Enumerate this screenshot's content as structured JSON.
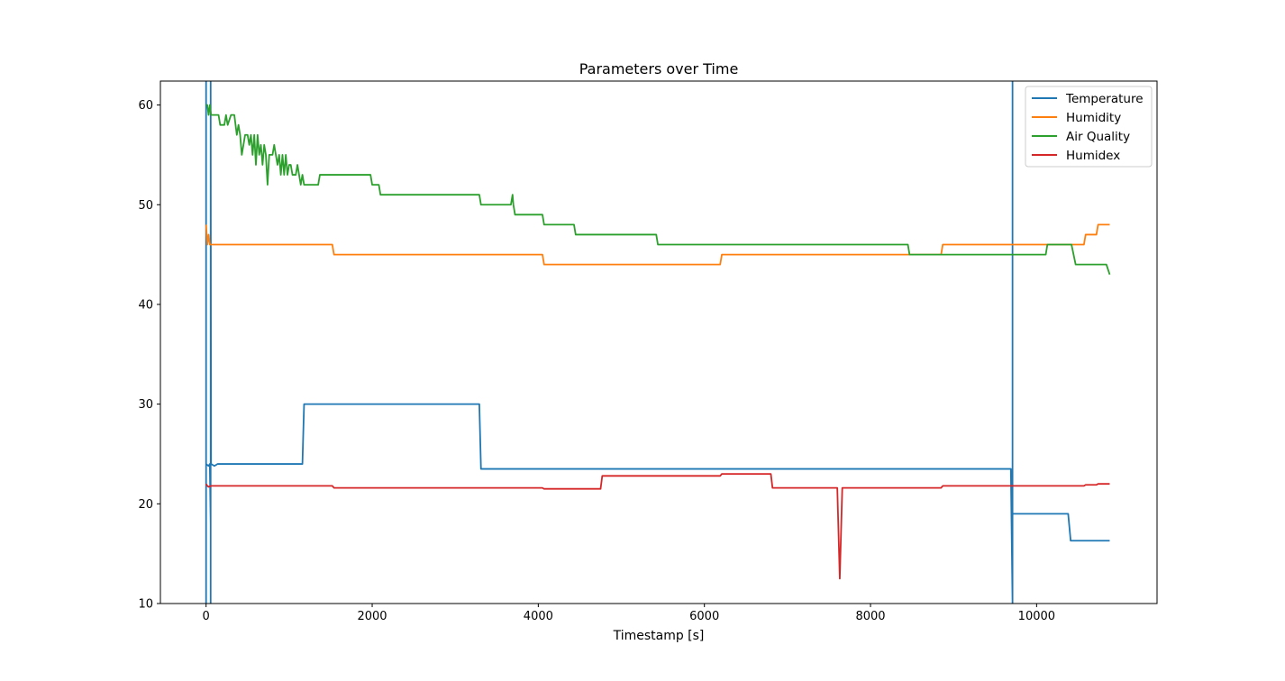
{
  "chart_data": {
    "type": "line",
    "title": "Parameters over Time",
    "xlabel": "Timestamp [s]",
    "ylabel": "",
    "xlim": [
      -550,
      11450
    ],
    "ylim": [
      10,
      62.4
    ],
    "xticks": [
      0,
      2000,
      4000,
      6000,
      8000,
      10000
    ],
    "yticks": [
      10,
      20,
      30,
      40,
      50,
      60
    ],
    "grid": false,
    "legend_position": "top-right",
    "series": [
      {
        "name": "Temperature",
        "color": "#1f77b4",
        "points": [
          [
            0,
            10
          ],
          [
            0,
            62.4
          ],
          [
            0,
            24
          ],
          [
            15,
            23.9
          ],
          [
            30,
            23.8
          ],
          [
            45,
            24
          ],
          [
            55,
            18
          ],
          [
            55,
            10
          ],
          [
            55,
            62.4
          ],
          [
            60,
            24
          ],
          [
            80,
            23.9
          ],
          [
            100,
            23.8
          ],
          [
            140,
            24
          ],
          [
            1160,
            24
          ],
          [
            1180,
            30
          ],
          [
            3290,
            30
          ],
          [
            3310,
            23.5
          ],
          [
            9690,
            23.5
          ],
          [
            9710,
            10
          ],
          [
            9710,
            62.4
          ],
          [
            9710,
            19
          ],
          [
            10380,
            19
          ],
          [
            10410,
            16.3
          ],
          [
            10880,
            16.3
          ]
        ]
      },
      {
        "name": "Humidity",
        "color": "#ff7f0e",
        "points": [
          [
            0,
            48
          ],
          [
            15,
            46
          ],
          [
            30,
            47
          ],
          [
            45,
            46
          ],
          [
            60,
            46
          ],
          [
            1520,
            46
          ],
          [
            1540,
            45
          ],
          [
            4050,
            45
          ],
          [
            4070,
            44
          ],
          [
            6190,
            44
          ],
          [
            6210,
            45
          ],
          [
            8850,
            45
          ],
          [
            8870,
            46
          ],
          [
            10570,
            46
          ],
          [
            10590,
            47
          ],
          [
            10720,
            47
          ],
          [
            10740,
            48
          ],
          [
            10880,
            48
          ]
        ]
      },
      {
        "name": "Air Quality",
        "color": "#2ca02c",
        "points": [
          [
            0,
            60
          ],
          [
            15,
            60
          ],
          [
            30,
            59
          ],
          [
            45,
            60
          ],
          [
            60,
            59
          ],
          [
            150,
            59
          ],
          [
            170,
            58
          ],
          [
            220,
            58
          ],
          [
            240,
            59
          ],
          [
            260,
            58
          ],
          [
            300,
            59
          ],
          [
            340,
            59
          ],
          [
            370,
            57
          ],
          [
            390,
            58
          ],
          [
            410,
            57
          ],
          [
            430,
            55
          ],
          [
            450,
            56
          ],
          [
            470,
            57
          ],
          [
            500,
            57
          ],
          [
            520,
            56
          ],
          [
            540,
            57
          ],
          [
            560,
            55
          ],
          [
            580,
            57
          ],
          [
            600,
            54
          ],
          [
            620,
            57
          ],
          [
            640,
            55
          ],
          [
            660,
            56
          ],
          [
            680,
            54
          ],
          [
            700,
            56
          ],
          [
            720,
            55
          ],
          [
            740,
            52
          ],
          [
            760,
            55
          ],
          [
            800,
            55
          ],
          [
            820,
            56
          ],
          [
            840,
            55
          ],
          [
            860,
            54
          ],
          [
            880,
            55
          ],
          [
            900,
            53
          ],
          [
            920,
            55
          ],
          [
            940,
            53
          ],
          [
            960,
            55
          ],
          [
            980,
            53
          ],
          [
            1000,
            54
          ],
          [
            1020,
            54
          ],
          [
            1040,
            53
          ],
          [
            1080,
            53
          ],
          [
            1100,
            54
          ],
          [
            1120,
            53
          ],
          [
            1140,
            52
          ],
          [
            1160,
            53
          ],
          [
            1180,
            52
          ],
          [
            1350,
            52
          ],
          [
            1370,
            53
          ],
          [
            1980,
            53
          ],
          [
            2000,
            52
          ],
          [
            2080,
            52
          ],
          [
            2100,
            51
          ],
          [
            3290,
            51
          ],
          [
            3310,
            50
          ],
          [
            3670,
            50
          ],
          [
            3690,
            51
          ],
          [
            3700,
            50
          ],
          [
            3720,
            49
          ],
          [
            4050,
            49
          ],
          [
            4070,
            48
          ],
          [
            4430,
            48
          ],
          [
            4450,
            47
          ],
          [
            5420,
            47
          ],
          [
            5440,
            46
          ],
          [
            8450,
            46
          ],
          [
            8470,
            45
          ],
          [
            10110,
            45
          ],
          [
            10130,
            46
          ],
          [
            10400,
            46
          ],
          [
            10420,
            46
          ],
          [
            10470,
            44
          ],
          [
            10840,
            44
          ],
          [
            10860,
            43.5
          ],
          [
            10880,
            43
          ]
        ]
      },
      {
        "name": "Humidex",
        "color": "#d62728",
        "points": [
          [
            0,
            22
          ],
          [
            15,
            21.8
          ],
          [
            30,
            21.7
          ],
          [
            60,
            21.8
          ],
          [
            1520,
            21.8
          ],
          [
            1540,
            21.6
          ],
          [
            4050,
            21.6
          ],
          [
            4070,
            21.5
          ],
          [
            4750,
            21.5
          ],
          [
            4770,
            22.8
          ],
          [
            6190,
            22.8
          ],
          [
            6210,
            23
          ],
          [
            6800,
            23
          ],
          [
            6820,
            21.6
          ],
          [
            7600,
            21.6
          ],
          [
            7630,
            12.5
          ],
          [
            7660,
            21.6
          ],
          [
            8850,
            21.6
          ],
          [
            8870,
            21.8
          ],
          [
            10570,
            21.8
          ],
          [
            10590,
            21.9
          ],
          [
            10720,
            21.9
          ],
          [
            10740,
            22
          ],
          [
            10880,
            22
          ]
        ]
      }
    ]
  }
}
